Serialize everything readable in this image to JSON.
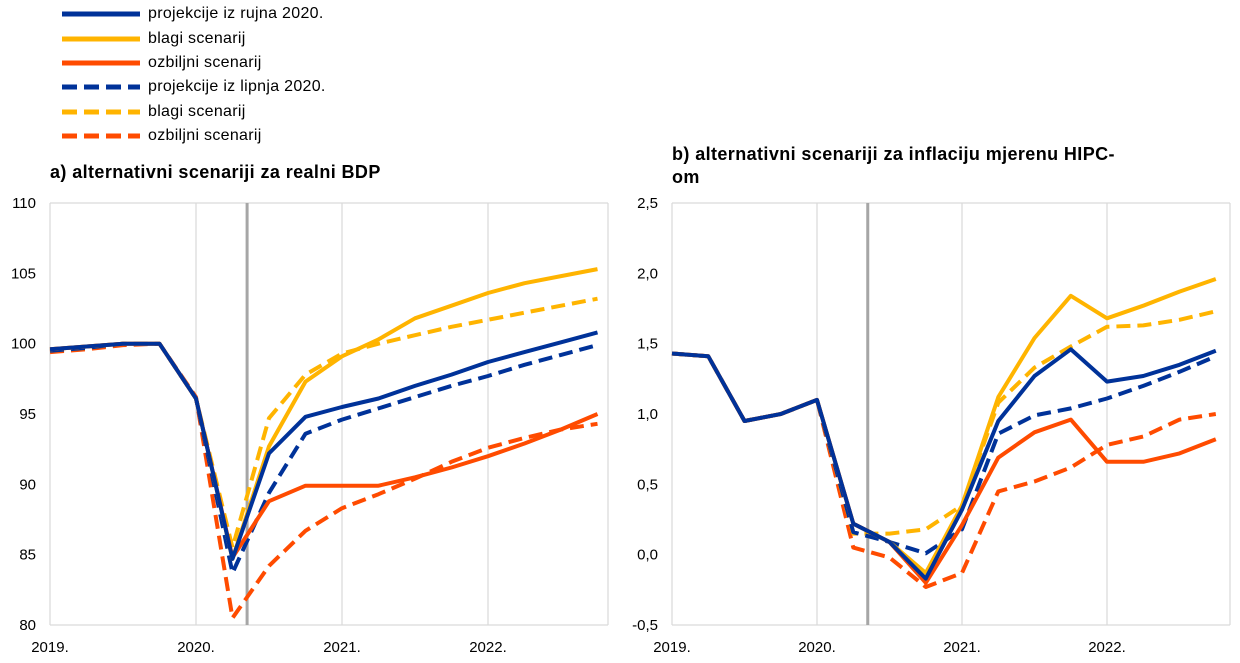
{
  "colors": {
    "sep": "#003299",
    "mild": "#ffb400",
    "severe": "#ff4b00",
    "axis": "#d9d9d9",
    "marker": "#a6a6a6"
  },
  "legend": [
    {
      "label": "projekcije iz rujna 2020.",
      "color": "#003299",
      "dash": false
    },
    {
      "label": "blagi scenarij",
      "color": "#ffb400",
      "dash": false
    },
    {
      "label": "ozbiljni scenarij",
      "color": "#ff4b00",
      "dash": false
    },
    {
      "label": "projekcije iz lipnja 2020.",
      "color": "#003299",
      "dash": true
    },
    {
      "label": "blagi scenarij",
      "color": "#ffb400",
      "dash": true
    },
    {
      "label": "ozbiljni scenarij",
      "color": "#ff4b00",
      "dash": true
    }
  ],
  "chart_data": [
    {
      "type": "line",
      "title": "a) alternativni scenariji za realni BDP",
      "x_tick_labels": [
        "2019.",
        "2020.",
        "2021.",
        "2022."
      ],
      "ylim": [
        80,
        110
      ],
      "y_ticks": [
        "80",
        "85",
        "90",
        "95",
        "100",
        "105",
        "110"
      ],
      "grid": "vertical at year starts",
      "marker_index": 5.4,
      "series": [
        {
          "style": "jun-severe",
          "values": [
            99.4,
            99.6,
            99.9,
            100,
            96.2,
            80.5,
            84.2,
            86.7,
            88.3,
            89.3,
            90.4,
            91.6,
            92.6,
            93.3,
            93.9,
            94.3
          ]
        },
        {
          "style": "jun-mild",
          "values": [
            99.5,
            99.7,
            100,
            100,
            96.1,
            85.5,
            94.7,
            97.8,
            99.3,
            100,
            100.6,
            101.2,
            101.7,
            102.2,
            102.7,
            103.2
          ]
        },
        {
          "style": "jun-base",
          "values": [
            99.5,
            99.7,
            100,
            100,
            96.1,
            83.7,
            89.4,
            93.6,
            94.6,
            95.4,
            96.2,
            97.0,
            97.7,
            98.5,
            99.2,
            99.9
          ]
        },
        {
          "style": "sep-mild",
          "values": [
            99.6,
            99.8,
            100,
            100,
            96.1,
            84.7,
            92.7,
            97.3,
            99.1,
            100.3,
            101.8,
            102.7,
            103.6,
            104.3,
            104.8,
            105.3
          ]
        },
        {
          "style": "sep-severe",
          "values": [
            99.6,
            99.8,
            100,
            100,
            96.1,
            84.8,
            88.8,
            89.9,
            89.9,
            89.9,
            90.5,
            91.2,
            92.0,
            92.9,
            93.9,
            95.0
          ]
        },
        {
          "style": "sep-base",
          "values": [
            99.6,
            99.8,
            100,
            100,
            96.1,
            84.7,
            92.2,
            94.8,
            95.5,
            96.1,
            97.0,
            97.8,
            98.7,
            99.4,
            100.1,
            100.8
          ]
        }
      ]
    },
    {
      "type": "line",
      "title": "b) alternativni scenariji za inflaciju mjerenu HIPC-om",
      "x_tick_labels": [
        "2019.",
        "2020.",
        "2021.",
        "2022."
      ],
      "ylim": [
        -0.5,
        2.5
      ],
      "y_ticks": [
        "-0,5",
        "0,0",
        "0,5",
        "1,0",
        "1,5",
        "2,0",
        "2,5"
      ],
      "grid": "vertical at year starts",
      "marker_index": 5.4,
      "series": [
        {
          "style": "jun-severe",
          "values": [
            1.43,
            1.41,
            0.95,
            1.0,
            1.1,
            0.05,
            -0.02,
            -0.23,
            -0.13,
            0.45,
            0.52,
            0.62,
            0.78,
            0.84,
            0.96,
            1.0
          ]
        },
        {
          "style": "jun-mild",
          "values": [
            1.43,
            1.41,
            0.95,
            1.0,
            1.1,
            0.15,
            0.15,
            0.18,
            0.35,
            1.08,
            1.33,
            1.48,
            1.62,
            1.63,
            1.67,
            1.73
          ]
        },
        {
          "style": "jun-base",
          "values": [
            1.43,
            1.41,
            0.95,
            1.0,
            1.1,
            0.16,
            0.09,
            0.01,
            0.18,
            0.86,
            0.99,
            1.04,
            1.11,
            1.2,
            1.3,
            1.41
          ]
        },
        {
          "style": "sep-mild",
          "values": [
            1.43,
            1.41,
            0.95,
            1.0,
            1.1,
            0.22,
            0.09,
            -0.13,
            0.35,
            1.12,
            1.54,
            1.84,
            1.68,
            1.77,
            1.87,
            1.96
          ]
        },
        {
          "style": "sep-severe",
          "values": [
            1.43,
            1.41,
            0.95,
            1.0,
            1.1,
            0.22,
            0.09,
            -0.2,
            0.21,
            0.69,
            0.87,
            0.96,
            0.66,
            0.66,
            0.72,
            0.82
          ]
        },
        {
          "style": "sep-base",
          "values": [
            1.43,
            1.41,
            0.95,
            1.0,
            1.1,
            0.22,
            0.09,
            -0.17,
            0.32,
            0.95,
            1.27,
            1.46,
            1.23,
            1.27,
            1.35,
            1.45
          ]
        }
      ]
    }
  ]
}
